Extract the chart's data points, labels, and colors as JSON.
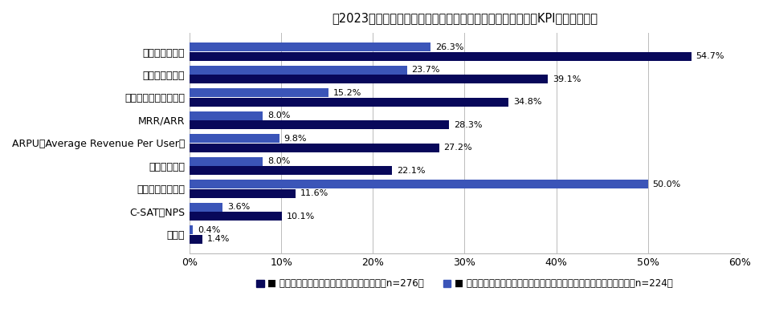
{
  "title": "［2023年］カスタマーサクセスの成果指標として定めているKPI（複数回答）",
  "categories": [
    "継続率／数／額",
    "解約率／数／額",
    "アップセル率／数／額",
    "MRR/ARR",
    "ARPU（Average Revenue Per User）",
    "ヘルススコア",
    "特に定めていない",
    "C-SAT／NPS",
    "その他"
  ],
  "series1_label": "カスタマーサクセスの効果を感じている（n=276）",
  "series2_label": "カスタマーサクセスの効果を感じていない／どちらとも言えない（n=224）",
  "series1_values": [
    54.7,
    39.1,
    34.8,
    28.3,
    27.2,
    22.1,
    11.6,
    10.1,
    1.4
  ],
  "series2_values": [
    26.3,
    23.7,
    15.2,
    8.0,
    9.8,
    8.0,
    50.0,
    3.6,
    0.4
  ],
  "series1_color": "#08085a",
  "series2_color": "#3b55b8",
  "bar_height": 0.38,
  "bar_gap": 0.02,
  "xlim": [
    0,
    60
  ],
  "xticks": [
    0,
    10,
    20,
    30,
    40,
    50,
    60
  ],
  "xticklabels": [
    "0%",
    "10%",
    "20%",
    "30%",
    "40%",
    "50%",
    "60%"
  ],
  "background_color": "#ffffff",
  "grid_color": "#bbbbbb",
  "title_fontsize": 10.5,
  "label_fontsize": 9,
  "tick_fontsize": 9,
  "legend_fontsize": 8.5,
  "value_fontsize": 8
}
